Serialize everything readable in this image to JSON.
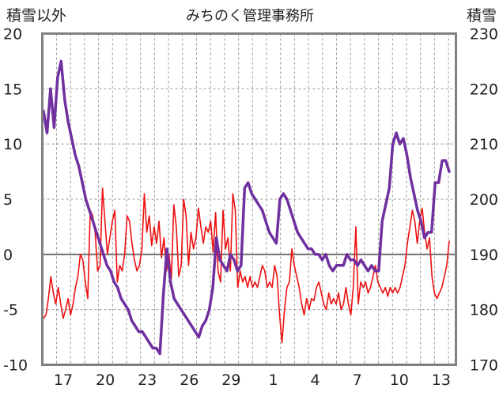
{
  "chart_data": {
    "type": "line",
    "title": "みちのく管理事務所",
    "left_axis_label": "積雪以外",
    "right_axis_label": "積雪",
    "left_ylim": [
      -10,
      20
    ],
    "left_yticks": [
      "20",
      "15",
      "10",
      "5",
      "0",
      "-5",
      "-10"
    ],
    "right_ylim": [
      170,
      230
    ],
    "right_yticks": [
      "230",
      "220",
      "210",
      "200",
      "190",
      "180",
      "170"
    ],
    "x_ticks": [
      "17",
      "20",
      "23",
      "26",
      "29",
      "1",
      "4",
      "7",
      "10",
      "13"
    ],
    "grid": true,
    "series": [
      {
        "axis": "left",
        "color": "#ee1111",
        "values": [
          -5.8,
          -5.5,
          -4,
          -2,
          -3.5,
          -4.5,
          -3,
          -4.5,
          -5.8,
          -5,
          -4,
          -5.5,
          -4.5,
          -3,
          -2,
          0,
          -0.5,
          -2.5,
          -4,
          4,
          3.5,
          2,
          -1.5,
          -1,
          6,
          3,
          0,
          1.5,
          3,
          4,
          -2.5,
          -1,
          -1.5,
          0,
          3.5,
          3,
          1,
          -0.5,
          -1.5,
          -1,
          0.5,
          5.5,
          2,
          3.5,
          0.8,
          2.5,
          1,
          3,
          -0.3,
          1.5,
          -1.5,
          0,
          -2.2,
          4.5,
          2.5,
          -2,
          -1,
          5,
          3.5,
          -1,
          2,
          0.5,
          1.5,
          4.2,
          2.5,
          1,
          2.5,
          2,
          3,
          0.2,
          3.8,
          -1.5,
          -2.5,
          4,
          0.5,
          1.5,
          -1.5,
          5.5,
          4,
          -3,
          -1.5,
          -2.5,
          -2,
          -3,
          -2,
          -3,
          -2.5,
          -3,
          -2,
          -1,
          -1.5,
          -3,
          -2.5,
          -3,
          -1,
          -2,
          -5.5,
          -8,
          -5,
          -3,
          -2.5,
          0.5,
          -1,
          -2,
          -3,
          -4.5,
          -5.5,
          -4,
          -5,
          -4,
          -4.2,
          -3,
          -2.5,
          -3.5,
          -4.5,
          -5,
          -3.5,
          -4.5,
          -4,
          -4.5,
          -3.5,
          -5,
          -4.5,
          -3,
          -4.5,
          -5.5,
          -3,
          2.5,
          -4.5,
          -2.5,
          -3,
          -2.5,
          -3.5,
          -3,
          -2,
          -1,
          -2.5,
          -3,
          -3.5,
          -3,
          -3.8,
          -3,
          -3.5,
          -3,
          -3.5,
          -3,
          -2,
          -1,
          1,
          2.5,
          4,
          3,
          1,
          3,
          4.2,
          2,
          0.5,
          1.5,
          -2,
          -3.5,
          -4,
          -3.5,
          -3,
          -2,
          -1,
          1.2
        ]
      },
      {
        "axis": "right",
        "color": "#7030a0",
        "values": [
          216,
          212,
          220,
          213,
          222,
          225,
          218,
          214,
          211,
          208,
          206,
          203,
          200,
          198,
          196,
          194,
          192,
          190,
          188,
          187,
          185,
          184,
          182,
          181,
          180,
          178,
          177,
          176,
          176,
          175,
          174,
          173,
          173,
          172,
          183,
          191,
          185,
          182,
          181,
          180,
          179,
          178,
          177,
          176,
          175,
          177,
          178,
          180,
          184,
          193,
          189,
          188,
          187,
          190,
          189,
          187,
          188,
          202,
          203,
          201,
          200,
          199,
          198,
          196,
          194,
          193,
          192,
          200,
          201,
          200,
          198,
          196,
          194,
          193,
          192,
          191,
          191,
          190,
          190,
          189,
          190,
          188,
          187,
          188,
          188,
          188,
          190,
          189,
          189,
          188,
          189,
          188,
          187,
          188,
          187,
          187,
          196,
          199,
          202,
          210,
          212,
          210,
          211,
          208,
          204,
          201,
          198,
          196,
          193,
          194,
          194,
          203,
          203,
          207,
          207,
          205
        ]
      }
    ]
  }
}
